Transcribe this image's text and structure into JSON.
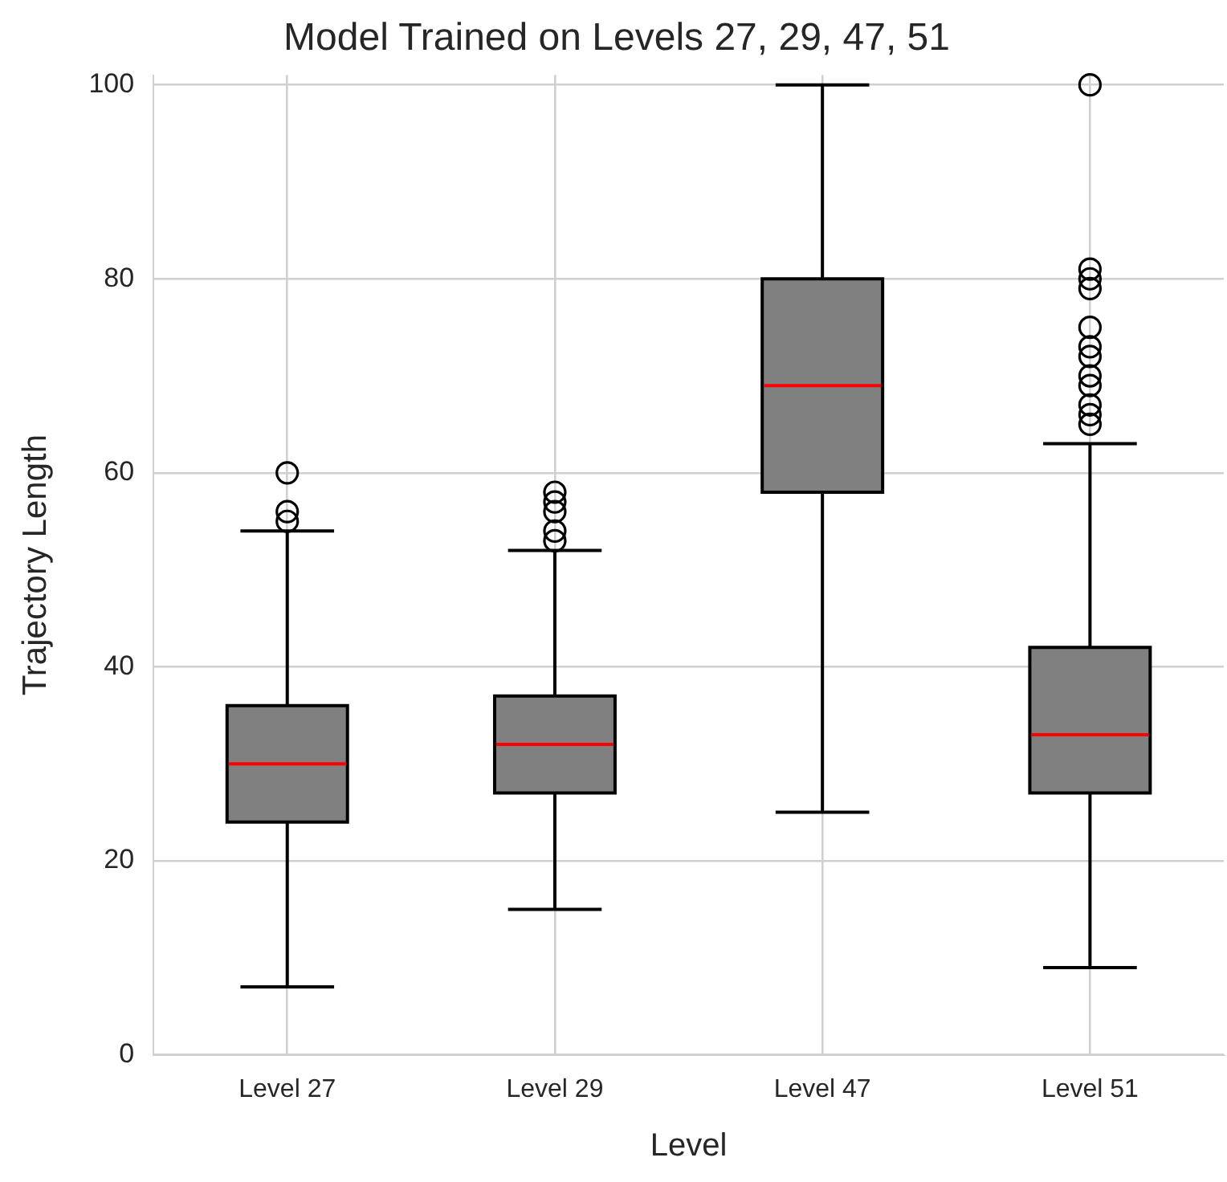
{
  "chart_data": {
    "type": "box",
    "title": "Model Trained on Levels 27, 29, 47, 51",
    "xlabel": "Level",
    "ylabel": "Trajectory Length",
    "categories": [
      "Level 27",
      "Level 29",
      "Level 47",
      "Level 51"
    ],
    "series": [
      {
        "color": "#808080",
        "boxes": [
          {
            "low": 7,
            "q1": 24,
            "median": 30,
            "q3": 36,
            "high": 54,
            "outliers": [
              55,
              56,
              60
            ]
          },
          {
            "low": 15,
            "q1": 27,
            "median": 32,
            "q3": 37,
            "high": 52,
            "outliers": [
              53,
              54,
              56,
              57,
              58
            ]
          },
          {
            "low": 25,
            "q1": 58,
            "median": 69,
            "q3": 80,
            "high": 100
          },
          {
            "low": 9,
            "q1": 27,
            "median": 33,
            "q3": 42,
            "high": 63,
            "outliers": [
              65,
              66,
              67,
              69,
              70,
              72,
              73,
              75,
              79,
              80,
              81,
              100
            ]
          }
        ]
      }
    ],
    "ylim": [
      0,
      101
    ],
    "yticks": [
      0,
      20,
      40,
      60,
      80,
      100
    ],
    "grid": true,
    "legend": false
  }
}
